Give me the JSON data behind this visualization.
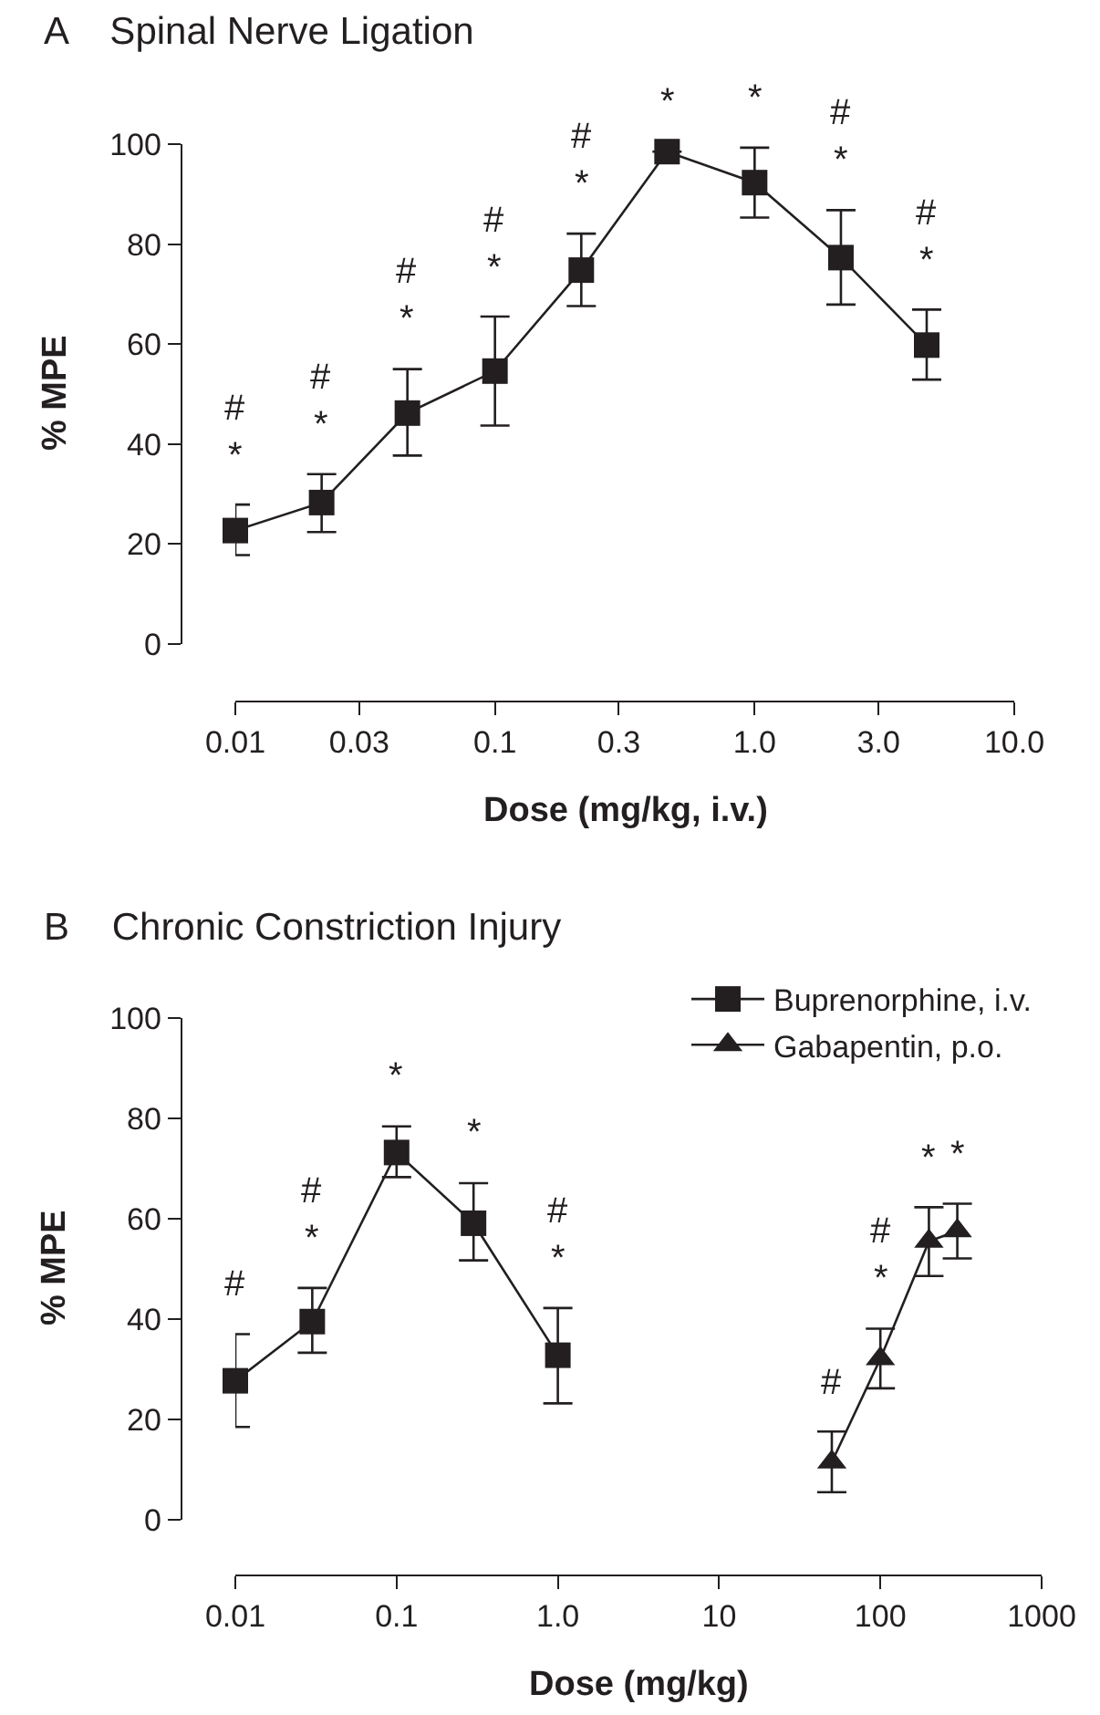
{
  "chart_data": [
    {
      "type": "line",
      "title": "A    Spinal Nerve Ligation",
      "xlabel": "Dose (mg/kg, i.v.)",
      "ylabel": "% MPE",
      "log": "x",
      "grid": false,
      "legend": false,
      "line_style": "solid",
      "xlim": [
        0.01,
        10
      ],
      "xticks": [
        0.01,
        0.03,
        0.1,
        0.3,
        {
          "value": 1,
          "label": "1.0"
        },
        {
          "value": 3,
          "label": "3.0"
        },
        {
          "value": 10,
          "label": "10.0"
        }
      ],
      "ylim": [
        0,
        100
      ],
      "yticks": [
        0,
        20,
        40,
        60,
        80,
        100
      ],
      "series": [
        {
          "color": "#231f20",
          "marker": "square",
          "x": [
            0.01,
            0.0215,
            0.046,
            0.1,
            0.215,
            0.46,
            1.0,
            2.15,
            4.6
          ],
          "values": [
            22.7,
            28.3,
            46.2,
            54.6,
            74.8,
            98.5,
            92.3,
            77.3,
            59.8
          ],
          "errors": [
            [
              17.8,
              27.9
            ],
            [
              22.4,
              34.0
            ],
            [
              37.7,
              55.0
            ],
            [
              43.7,
              65.5
            ],
            [
              67.6,
              82.1
            ],
            null,
            [
              85.3,
              99.3
            ],
            [
              67.9,
              86.8
            ],
            [
              52.9,
              66.9
            ]
          ]
        }
      ],
      "annotations": [
        {
          "text": "*",
          "x": 0.01,
          "y": 22.7
        },
        "#",
        {
          "text": "*",
          "x": 0.0215,
          "y": 28.3
        },
        "#",
        {
          "text": "*",
          "x": 0.046,
          "y": 46.2
        },
        "#",
        {
          "text": "*",
          "x": 0.1,
          "y": 54.6
        },
        "#",
        {
          "text": "*",
          "x": 0.215,
          "y": 74.8
        },
        "#",
        {
          "text": "*",
          "x": 0.46,
          "y": 98.5
        },
        {
          "text": "*",
          "x": 1.0,
          "y": 92.3
        },
        {
          "text": "*",
          "x": 2.15,
          "y": 77.3
        },
        "#",
        {
          "text": "*",
          "x": 4.6,
          "y": 59.8
        },
        "#"
      ]
    },
    {
      "type": "line",
      "title": "B    Chronic Constriction Injury",
      "xlabel": "Dose (mg/kg)",
      "ylabel": "% MPE",
      "log": "x",
      "grid": false,
      "legend": "top right",
      "line_style": "solid",
      "xlim": [
        0.01,
        1000
      ],
      "xticks": [
        0.01,
        0.1,
        {
          "value": 1,
          "label": "1.0"
        },
        10,
        100,
        1000
      ],
      "ylim": [
        0,
        100
      ],
      "yticks": [
        0,
        20,
        40,
        60,
        80,
        100
      ],
      "series": [
        {
          "name": "Buprenorphine, i.v.",
          "color": "#231f20",
          "marker": "square",
          "x": [
            0.01,
            0.03,
            0.1,
            0.3,
            1.0
          ],
          "values": [
            27.7,
            39.5,
            73.2,
            59.1,
            32.8
          ],
          "errors": [
            [
              18.5,
              37.0
            ],
            [
              33.3,
              46.2
            ],
            [
              68.3,
              78.4
            ],
            [
              51.7,
              67.1
            ],
            [
              23.2,
              42.2
            ]
          ]
        },
        {
          "name": "Gabapentin, p.o.",
          "color": "#231f20",
          "marker": "triangle",
          "x": [
            50,
            100,
            200,
            300
          ],
          "values": [
            11.5,
            32.1,
            55.5,
            57.6
          ],
          "errors": [
            [
              5.5,
              17.6
            ],
            [
              26.2,
              38.1
            ],
            [
              48.6,
              62.3
            ],
            [
              52.1,
              63.0
            ]
          ]
        }
      ],
      "annotations": [
        {
          "text": "#",
          "x": 0.01,
          "y": 27.7
        },
        {
          "text": "*",
          "x": 0.03,
          "y": 39.5
        },
        "#",
        {
          "text": "*",
          "x": 0.1,
          "y": 73.2
        },
        {
          "text": "*",
          "x": 0.3,
          "y": 59.1
        },
        {
          "text": "*",
          "x": 1.0,
          "y": 32.8
        },
        "#",
        {
          "text": "#",
          "x": 50,
          "y": 11.5
        },
        {
          "text": "*",
          "x": 100,
          "y": 32.1
        },
        "#",
        {
          "text": "*",
          "x": 200,
          "y": 55.5
        },
        {
          "text": "*",
          "x": 300,
          "y": 57.6
        }
      ]
    }
  ]
}
